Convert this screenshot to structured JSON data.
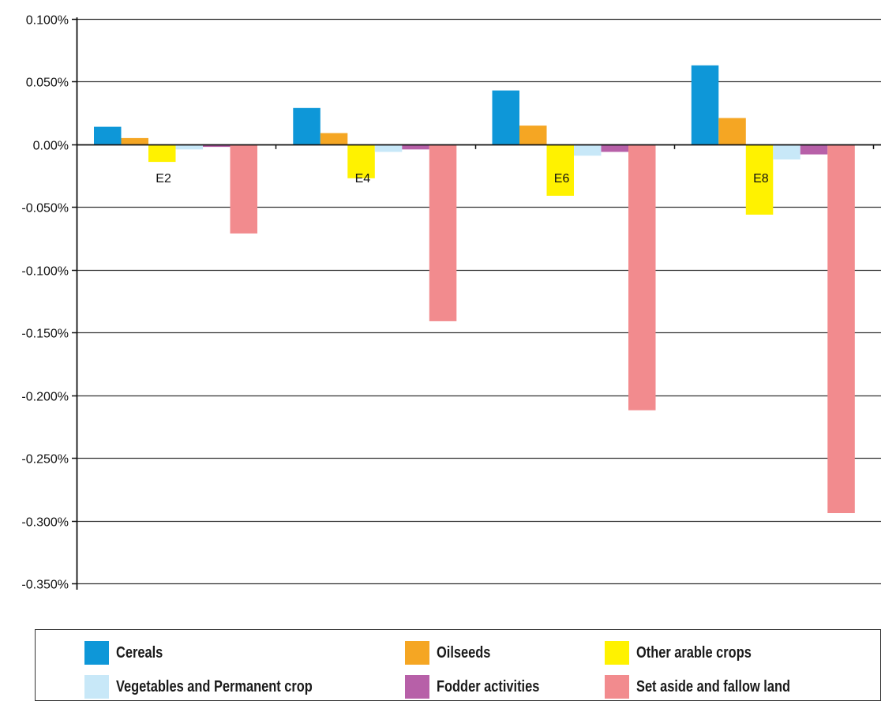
{
  "chart_data": {
    "type": "bar",
    "categories": [
      "E2",
      "E4",
      "E6",
      "E8"
    ],
    "series": [
      {
        "name": "Cereals",
        "color": "#0e97d8",
        "values": [
          0.014,
          0.029,
          0.043,
          0.063
        ]
      },
      {
        "name": "Oilseeds",
        "color": "#f5a623",
        "values": [
          0.005,
          0.009,
          0.015,
          0.021
        ]
      },
      {
        "name": "Other arable crops",
        "color": "#fff200",
        "values": [
          -0.014,
          -0.027,
          -0.041,
          -0.056
        ]
      },
      {
        "name": "Vegetables and Permanent crop",
        "color": "#c8e8f8",
        "values": [
          -0.004,
          -0.006,
          -0.009,
          -0.012
        ]
      },
      {
        "name": "Fodder activities",
        "color": "#b760a8",
        "values": [
          -0.002,
          -0.004,
          -0.006,
          -0.008
        ]
      },
      {
        "name": "Set aside and fallow land",
        "color": "#f28b8e",
        "values": [
          -0.071,
          -0.141,
          -0.212,
          -0.294
        ]
      }
    ],
    "ylim": [
      -0.35,
      0.1
    ],
    "yticks": [
      "0.100%",
      "0.050%",
      "0.00%",
      "-0.050%",
      "-0.100%",
      "-0.150%",
      "-0.200%",
      "-0.250%",
      "-0.300%",
      "-0.350%"
    ],
    "ytick_values": [
      0.1,
      0.05,
      0,
      -0.05,
      -0.1,
      -0.15,
      -0.2,
      -0.25,
      -0.3,
      -0.35
    ],
    "grid": true,
    "legend_position": "bottom"
  }
}
